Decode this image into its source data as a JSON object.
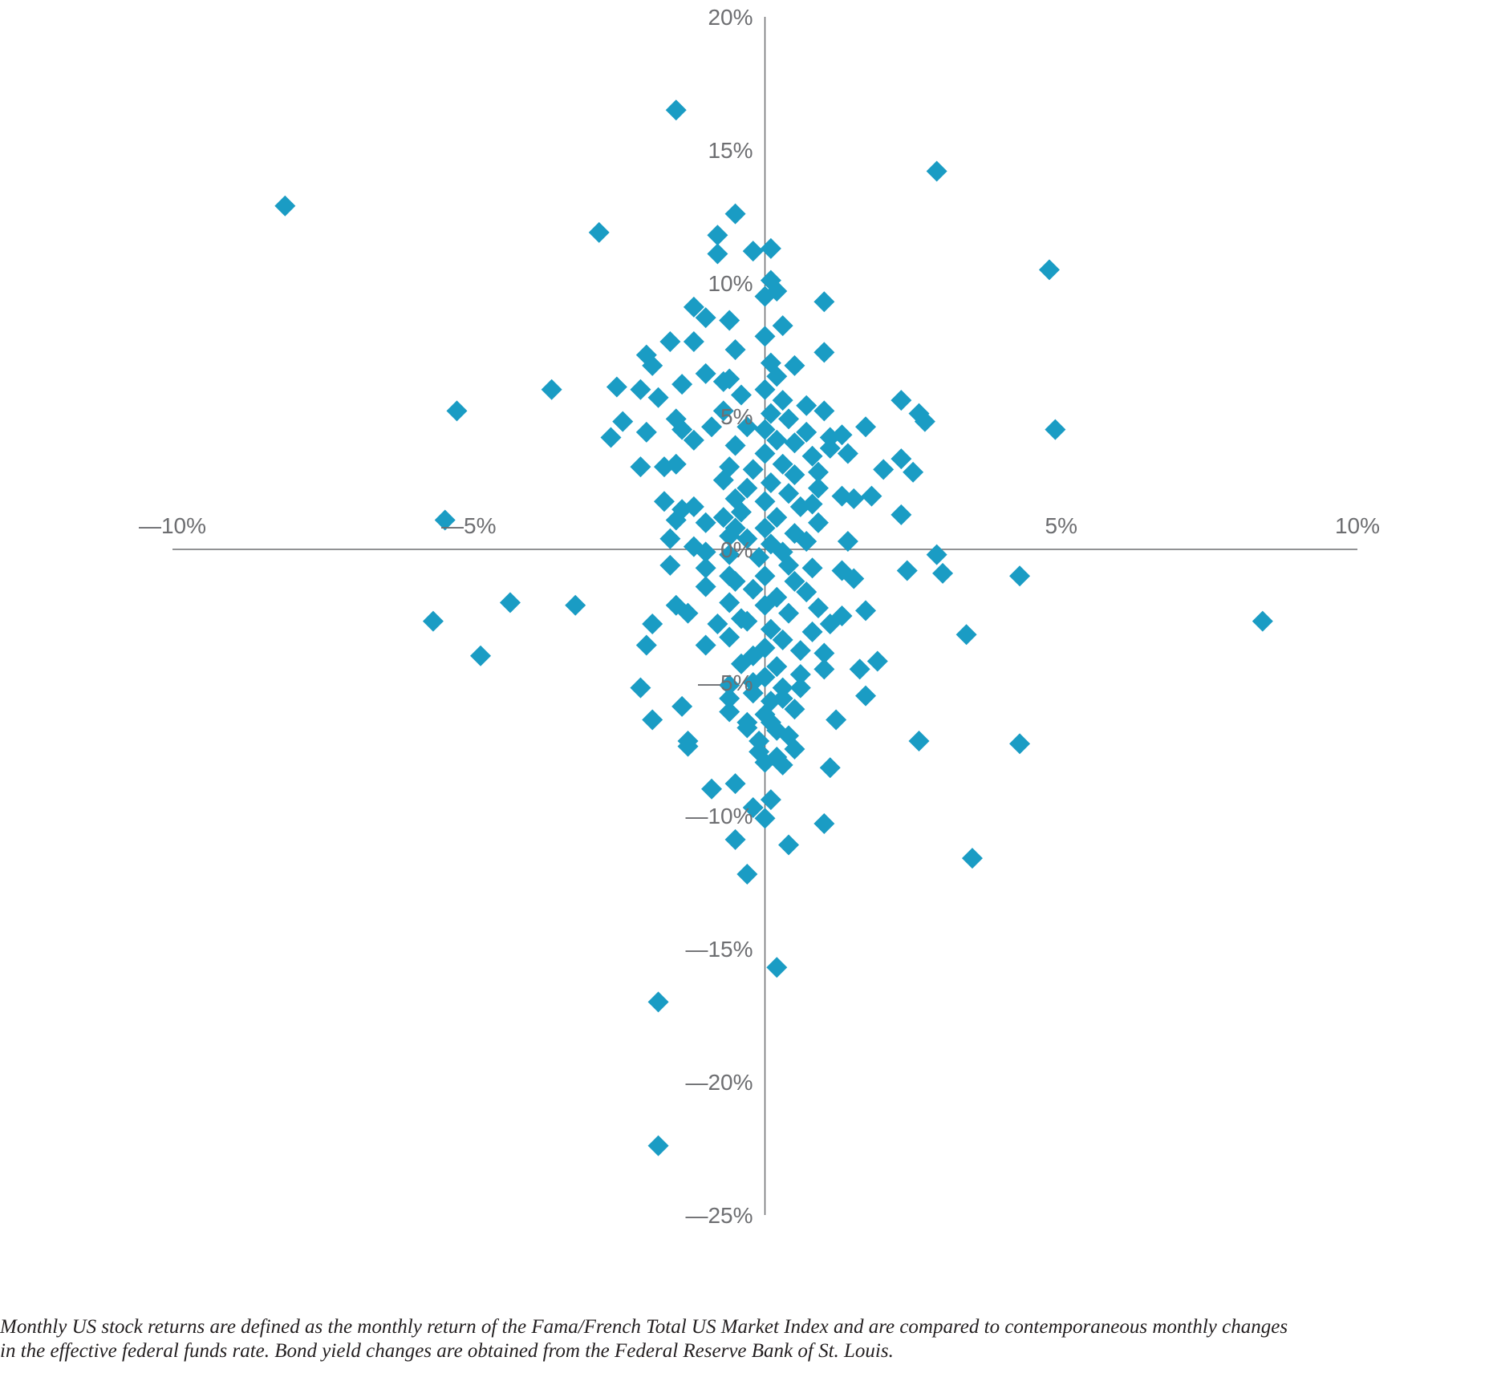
{
  "chart_data": {
    "type": "scatter",
    "title": "",
    "xlabel": "",
    "ylabel": "",
    "xlim": [
      -10,
      10
    ],
    "ylim": [
      -25,
      20
    ],
    "x_ticks": [
      {
        "value": -10,
        "label": "—10%"
      },
      {
        "value": -5,
        "label": "—5%"
      },
      {
        "value": 5,
        "label": "5%"
      },
      {
        "value": 10,
        "label": "10%"
      }
    ],
    "y_ticks": [
      {
        "value": 20,
        "label": "20%"
      },
      {
        "value": 15,
        "label": "15%"
      },
      {
        "value": 10,
        "label": "10%"
      },
      {
        "value": 5,
        "label": "5%"
      },
      {
        "value": 0,
        "label": "0%"
      },
      {
        "value": -5,
        "label": "—5%"
      },
      {
        "value": -10,
        "label": "—10%"
      },
      {
        "value": -15,
        "label": "—15%"
      },
      {
        "value": -20,
        "label": "—20%"
      },
      {
        "value": -25,
        "label": "—25%"
      }
    ],
    "grid": false,
    "marker": "diamond",
    "color": "#1a9cc4",
    "points": [
      [
        -8.1,
        12.9
      ],
      [
        -1.5,
        16.5
      ],
      [
        2.9,
        14.2
      ],
      [
        -2.8,
        11.9
      ],
      [
        -0.5,
        12.6
      ],
      [
        -0.8,
        11.8
      ],
      [
        -0.8,
        11.1
      ],
      [
        -0.2,
        11.2
      ],
      [
        0.1,
        11.3
      ],
      [
        4.8,
        10.5
      ],
      [
        0.1,
        10.1
      ],
      [
        0.2,
        9.7
      ],
      [
        0.0,
        9.5
      ],
      [
        1.0,
        9.3
      ],
      [
        -1.2,
        9.1
      ],
      [
        -1.0,
        8.7
      ],
      [
        -0.6,
        8.6
      ],
      [
        0.3,
        8.4
      ],
      [
        -1.6,
        7.8
      ],
      [
        -1.2,
        7.8
      ],
      [
        -2.0,
        7.3
      ],
      [
        -0.5,
        7.5
      ],
      [
        1.0,
        7.4
      ],
      [
        0.5,
        6.9
      ],
      [
        -1.9,
        6.9
      ],
      [
        -1.0,
        6.6
      ],
      [
        -0.7,
        6.3
      ],
      [
        -3.6,
        6.0
      ],
      [
        -2.5,
        6.1
      ],
      [
        -2.1,
        6.0
      ],
      [
        -1.8,
        5.7
      ],
      [
        -1.4,
        6.2
      ],
      [
        2.3,
        5.6
      ],
      [
        -5.2,
        5.2
      ],
      [
        -2.4,
        4.8
      ],
      [
        -1.5,
        4.9
      ],
      [
        -1.4,
        4.5
      ],
      [
        -0.9,
        4.6
      ],
      [
        0.7,
        5.4
      ],
      [
        1.0,
        5.2
      ],
      [
        2.6,
        5.1
      ],
      [
        2.7,
        4.8
      ],
      [
        4.9,
        4.5
      ],
      [
        1.7,
        4.6
      ],
      [
        1.3,
        4.3
      ],
      [
        1.1,
        4.2
      ],
      [
        -2.0,
        4.4
      ],
      [
        -2.6,
        4.2
      ],
      [
        -1.2,
        4.1
      ],
      [
        1.1,
        3.8
      ],
      [
        1.4,
        3.6
      ],
      [
        2.3,
        3.4
      ],
      [
        -2.1,
        3.1
      ],
      [
        -1.7,
        3.1
      ],
      [
        -1.5,
        3.2
      ],
      [
        2.0,
        3.0
      ],
      [
        2.5,
        2.9
      ],
      [
        1.3,
        2.0
      ],
      [
        1.5,
        1.9
      ],
      [
        1.8,
        2.0
      ],
      [
        -1.7,
        1.8
      ],
      [
        -1.4,
        1.5
      ],
      [
        -1.2,
        1.6
      ],
      [
        2.3,
        1.3
      ],
      [
        -5.4,
        1.1
      ],
      [
        -1.5,
        1.1
      ],
      [
        -1.0,
        1.0
      ],
      [
        -0.6,
        0.5
      ],
      [
        1.4,
        0.3
      ],
      [
        -1.6,
        0.4
      ],
      [
        -1.2,
        0.1
      ],
      [
        -1.0,
        -0.1
      ],
      [
        2.9,
        -0.2
      ],
      [
        -1.6,
        -0.6
      ],
      [
        -1.0,
        -0.7
      ],
      [
        2.4,
        -0.8
      ],
      [
        3.0,
        -0.9
      ],
      [
        4.3,
        -1.0
      ],
      [
        -0.6,
        -1.0
      ],
      [
        -1.0,
        -1.4
      ],
      [
        1.3,
        -0.8
      ],
      [
        1.5,
        -1.1
      ],
      [
        -4.3,
        -2.0
      ],
      [
        -3.2,
        -2.1
      ],
      [
        -1.5,
        -2.1
      ],
      [
        -1.3,
        -2.4
      ],
      [
        1.7,
        -2.3
      ],
      [
        1.3,
        -2.5
      ],
      [
        -5.6,
        -2.7
      ],
      [
        -1.9,
        -2.8
      ],
      [
        -0.8,
        -2.8
      ],
      [
        1.1,
        -2.8
      ],
      [
        3.4,
        -3.2
      ],
      [
        8.4,
        -2.7
      ],
      [
        -2.0,
        -3.6
      ],
      [
        -1.0,
        -3.6
      ],
      [
        1.0,
        -3.9
      ],
      [
        -4.8,
        -4.0
      ],
      [
        1.9,
        -4.2
      ],
      [
        1.0,
        -4.5
      ],
      [
        1.6,
        -4.5
      ],
      [
        -0.6,
        -5.1
      ],
      [
        0.6,
        -5.2
      ],
      [
        -2.1,
        -5.2
      ],
      [
        -0.2,
        -5.4
      ],
      [
        -0.6,
        -5.6
      ],
      [
        1.7,
        -5.5
      ],
      [
        0.3,
        -5.6
      ],
      [
        -1.4,
        -5.9
      ],
      [
        -0.6,
        -6.1
      ],
      [
        1.2,
        -6.4
      ],
      [
        -1.9,
        -6.4
      ],
      [
        0.1,
        -6.5
      ],
      [
        -0.3,
        -6.7
      ],
      [
        -0.1,
        -7.2
      ],
      [
        -1.3,
        -7.2
      ],
      [
        2.6,
        -7.2
      ],
      [
        4.3,
        -7.3
      ],
      [
        -1.3,
        -7.4
      ],
      [
        0.5,
        -7.5
      ],
      [
        0.2,
        -7.8
      ],
      [
        0.0,
        -8.0
      ],
      [
        1.1,
        -8.2
      ],
      [
        -0.5,
        -8.8
      ],
      [
        -0.9,
        -9.0
      ],
      [
        0.1,
        -9.4
      ],
      [
        -0.2,
        -9.7
      ],
      [
        0.0,
        -10.1
      ],
      [
        1.0,
        -10.3
      ],
      [
        -0.5,
        -10.9
      ],
      [
        0.4,
        -11.1
      ],
      [
        3.5,
        -11.6
      ],
      [
        -0.3,
        -12.2
      ],
      [
        0.2,
        -15.7
      ],
      [
        -1.8,
        -17.0
      ],
      [
        -1.8,
        -22.4
      ],
      [
        0.0,
        8.0
      ],
      [
        0.1,
        7.0
      ],
      [
        0.2,
        6.5
      ],
      [
        0.0,
        6.0
      ],
      [
        0.3,
        5.6
      ],
      [
        0.1,
        5.1
      ],
      [
        0.4,
        4.9
      ],
      [
        0.0,
        4.5
      ],
      [
        0.2,
        4.1
      ],
      [
        0.5,
        4.0
      ],
      [
        0.0,
        3.6
      ],
      [
        0.3,
        3.2
      ],
      [
        -0.2,
        3.0
      ],
      [
        0.5,
        2.8
      ],
      [
        0.1,
        2.5
      ],
      [
        -0.3,
        2.3
      ],
      [
        0.4,
        2.1
      ],
      [
        0.0,
        1.8
      ],
      [
        0.6,
        1.6
      ],
      [
        -0.4,
        1.4
      ],
      [
        0.2,
        1.2
      ],
      [
        0.0,
        0.8
      ],
      [
        0.5,
        0.6
      ],
      [
        -0.3,
        0.4
      ],
      [
        0.1,
        0.2
      ],
      [
        0.3,
        -0.1
      ],
      [
        -0.1,
        -0.3
      ],
      [
        0.4,
        -0.6
      ],
      [
        0.0,
        -1.0
      ],
      [
        0.5,
        -1.2
      ],
      [
        -0.2,
        -1.5
      ],
      [
        0.2,
        -1.8
      ],
      [
        0.0,
        -2.1
      ],
      [
        0.4,
        -2.4
      ],
      [
        -0.3,
        -2.7
      ],
      [
        0.1,
        -3.0
      ],
      [
        0.3,
        -3.4
      ],
      [
        0.0,
        -3.7
      ],
      [
        -0.2,
        -4.0
      ],
      [
        0.2,
        -4.4
      ],
      [
        0.0,
        -4.8
      ],
      [
        0.3,
        -5.2
      ],
      [
        0.1,
        -5.7
      ],
      [
        0.0,
        -6.2
      ],
      [
        0.2,
        -6.8
      ],
      [
        -0.6,
        6.4
      ],
      [
        -0.4,
        5.8
      ],
      [
        -0.7,
        5.2
      ],
      [
        -0.3,
        4.6
      ],
      [
        0.7,
        4.4
      ],
      [
        -0.5,
        3.9
      ],
      [
        0.8,
        3.5
      ],
      [
        -0.6,
        3.1
      ],
      [
        0.9,
        2.9
      ],
      [
        -0.7,
        2.6
      ],
      [
        0.9,
        2.3
      ],
      [
        -0.5,
        1.9
      ],
      [
        0.8,
        1.7
      ],
      [
        -0.7,
        1.2
      ],
      [
        0.9,
        1.0
      ],
      [
        -0.5,
        0.8
      ],
      [
        0.7,
        0.3
      ],
      [
        -0.6,
        -0.2
      ],
      [
        0.8,
        -0.7
      ],
      [
        -0.5,
        -1.2
      ],
      [
        0.7,
        -1.6
      ],
      [
        -0.6,
        -2.0
      ],
      [
        0.9,
        -2.2
      ],
      [
        -0.4,
        -2.6
      ],
      [
        0.8,
        -3.1
      ],
      [
        -0.6,
        -3.3
      ],
      [
        0.6,
        -3.8
      ],
      [
        -0.4,
        -4.3
      ],
      [
        0.6,
        -4.7
      ],
      [
        -0.2,
        -5.0
      ],
      [
        0.5,
        -6.0
      ],
      [
        -0.3,
        -6.5
      ],
      [
        0.4,
        -7.0
      ],
      [
        -0.1,
        -7.6
      ],
      [
        0.3,
        -8.1
      ]
    ]
  },
  "footnote": {
    "line1": "Monthly US stock returns are defined as the monthly return of the Fama/French Total US Market Index and are compared to contemporaneous monthly changes",
    "line2": "in the effective federal funds rate. Bond yield changes are obtained from the Federal Reserve Bank of St. Louis."
  }
}
